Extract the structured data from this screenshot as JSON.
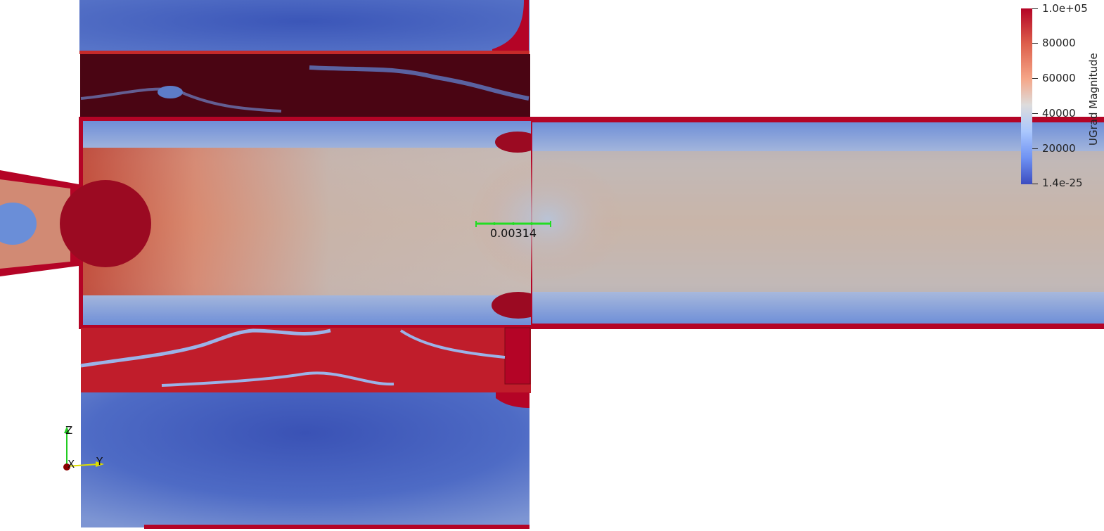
{
  "viewport": {
    "scale_bar": {
      "value_label": "0.00314",
      "color": "#22dd22"
    }
  },
  "legend": {
    "title": "UGrad Magnitude",
    "max_label": "1.0e+05",
    "min_label": "1.4e-25",
    "ticks": [
      "80000",
      "60000",
      "40000",
      "20000"
    ],
    "colormap": "cool-to-warm",
    "colors": {
      "max": "#b40426",
      "mid": "#dddcdc",
      "min": "#3b4cc0"
    }
  },
  "orientation_axes": {
    "z_label": "Z",
    "y_label": "Y",
    "x_label": "X",
    "colors": {
      "z": "#22cc22",
      "y": "#dddd00",
      "x": "#8b0000"
    }
  }
}
